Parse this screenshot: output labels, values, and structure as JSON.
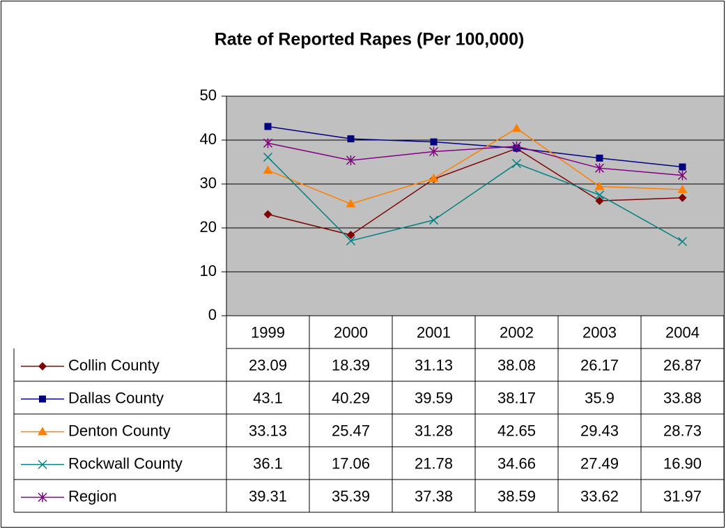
{
  "chart_data": {
    "type": "line",
    "title": "Rate of Reported Rapes (Per 100,000)",
    "categories": [
      "1999",
      "2000",
      "2001",
      "2002",
      "2003",
      "2004"
    ],
    "series": [
      {
        "name": "Collin County",
        "color": "#800000",
        "marker": "diamond",
        "values": [
          23.09,
          18.39,
          31.13,
          38.08,
          26.17,
          26.87
        ]
      },
      {
        "name": "Dallas County",
        "color": "#000080",
        "marker": "square",
        "values": [
          43.1,
          40.29,
          39.59,
          38.17,
          35.9,
          33.88
        ]
      },
      {
        "name": "Denton County",
        "color": "#ff8000",
        "marker": "triangle",
        "values": [
          33.13,
          25.47,
          31.28,
          42.65,
          29.43,
          28.73
        ]
      },
      {
        "name": "Rockwall County",
        "color": "#008080",
        "marker": "x",
        "values": [
          36.1,
          17.06,
          21.78,
          34.66,
          27.49,
          16.9
        ],
        "value_labels": [
          "36.1",
          "17.06",
          "21.78",
          "34.66",
          "27.49",
          "16.90"
        ]
      },
      {
        "name": "Region",
        "color": "#800080",
        "marker": "star",
        "values": [
          39.31,
          35.39,
          37.38,
          38.59,
          33.62,
          31.97
        ]
      }
    ],
    "ylim": [
      0,
      50
    ],
    "yticks": [
      0,
      10,
      20,
      30,
      40,
      50
    ],
    "grid": true,
    "data_table": true
  }
}
